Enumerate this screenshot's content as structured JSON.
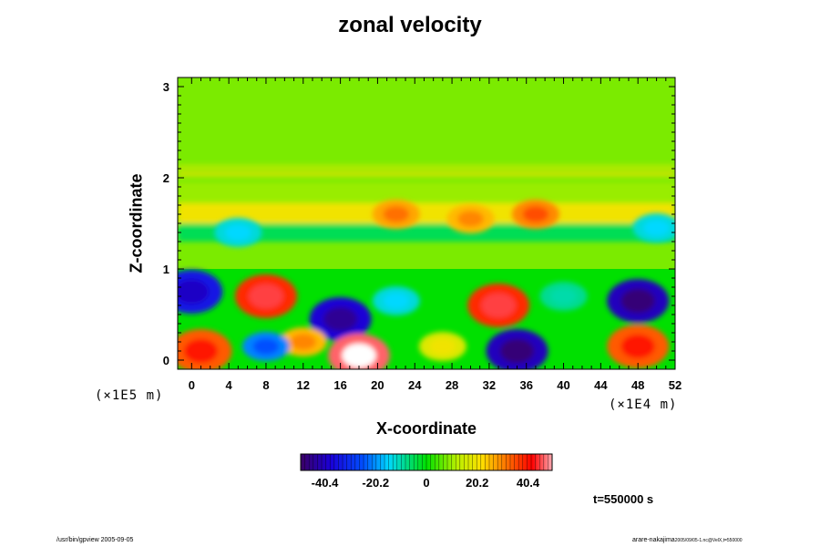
{
  "chart_data": {
    "type": "heatmap",
    "title": "zonal velocity",
    "xlabel": "X-coordinate",
    "ylabel": "Z-coordinate",
    "x_unit": "(×1E4 m)",
    "y_unit": "(×1E5 m)",
    "xlim": [
      -1.5,
      52
    ],
    "ylim": [
      -0.1,
      3.1
    ],
    "x_ticks": [
      "0",
      "4",
      "8",
      "12",
      "16",
      "20",
      "24",
      "28",
      "32",
      "36",
      "40",
      "44",
      "48",
      "52"
    ],
    "x_tick_values": [
      0,
      4,
      8,
      12,
      16,
      20,
      24,
      28,
      32,
      36,
      40,
      44,
      48,
      52
    ],
    "y_ticks": [
      "0",
      "1",
      "2",
      "3"
    ],
    "y_tick_values": [
      0,
      1,
      2,
      3
    ],
    "colorbar": {
      "range": [
        -50,
        50
      ],
      "ticks": [
        "-40.4",
        "-20.2",
        "0",
        "20.2",
        "40.4"
      ],
      "tick_values": [
        -40.4,
        -20.2,
        0,
        20.2,
        40.4
      ]
    },
    "bands": [
      {
        "z": [
          1.5,
          1.72
        ],
        "value": 20
      },
      {
        "z": [
          1.72,
          1.95
        ],
        "value": 10
      },
      {
        "z": [
          2.02,
          2.05
        ],
        "value": 22
      },
      {
        "z": [
          2.08,
          2.1
        ],
        "value": 18
      },
      {
        "z": [
          2.12,
          2.14
        ],
        "value": 16
      },
      {
        "z": [
          1.3,
          1.5
        ],
        "value": -5
      }
    ],
    "features": [
      {
        "x": 8,
        "z": 0.7,
        "value": 45
      },
      {
        "x": 1,
        "z": 0.1,
        "value": 40
      },
      {
        "x": 0,
        "z": 0.75,
        "value": -40
      },
      {
        "x": 16,
        "z": 0.45,
        "value": -45
      },
      {
        "x": 18,
        "z": 0.05,
        "value": 55
      },
      {
        "x": 12,
        "z": 0.2,
        "value": 30
      },
      {
        "x": 8,
        "z": 0.15,
        "value": -25
      },
      {
        "x": 22,
        "z": 0.65,
        "value": -15
      },
      {
        "x": 27,
        "z": 0.15,
        "value": 20
      },
      {
        "x": 33,
        "z": 0.6,
        "value": 45
      },
      {
        "x": 35,
        "z": 0.1,
        "value": -48
      },
      {
        "x": 48,
        "z": 0.65,
        "value": -48
      },
      {
        "x": 48,
        "z": 0.15,
        "value": 40
      },
      {
        "x": 40,
        "z": 0.7,
        "value": -10
      },
      {
        "x": 30,
        "z": 1.55,
        "value": 30
      },
      {
        "x": 37,
        "z": 1.6,
        "value": 35
      },
      {
        "x": 22,
        "z": 1.6,
        "value": 32
      },
      {
        "x": 5,
        "z": 1.4,
        "value": -15
      },
      {
        "x": 50,
        "z": 1.45,
        "value": -15
      }
    ]
  },
  "labels": {
    "timestamp": "t=550000 s",
    "footer_left": "/usr/bin/gpview 2005-09-05",
    "footer_right_main": "arare-nakajima",
    "footer_right_sub": "2005/09/05-1.nc@VelX,t=550000"
  }
}
